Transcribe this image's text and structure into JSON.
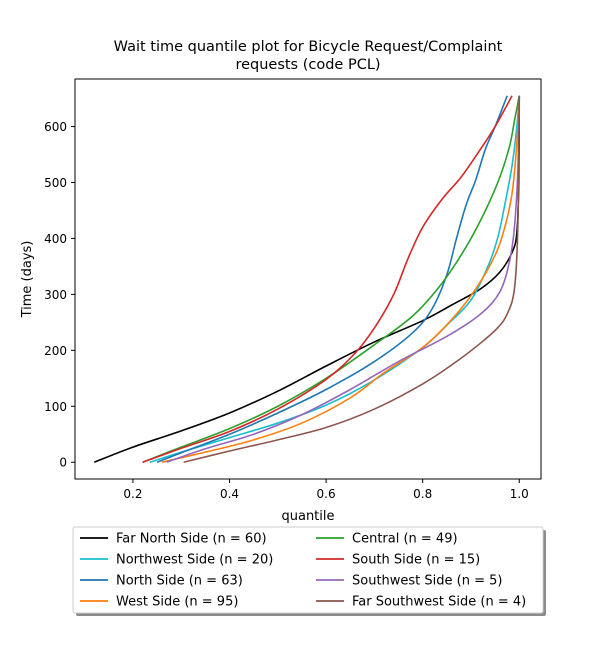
{
  "chart_data": {
    "type": "line",
    "title": "Wait time quantile plot for Bicycle Request/Complaint requests (code PCL)",
    "title_lines": [
      "Wait time quantile plot for Bicycle Request/Complaint",
      "requests (code PCL)"
    ],
    "xlabel": "quantile",
    "ylabel": "Time (days)",
    "xlim": [
      0.08,
      1.045
    ],
    "ylim": [
      -30,
      685
    ],
    "xticks": [
      0.2,
      0.4,
      0.6,
      0.8,
      1.0
    ],
    "xtick_labels": [
      "0.2",
      "0.4",
      "0.6",
      "0.8",
      "1.0"
    ],
    "yticks": [
      0,
      100,
      200,
      300,
      400,
      500,
      600
    ],
    "ytick_labels": [
      "0",
      "100",
      "200",
      "300",
      "400",
      "500",
      "600"
    ],
    "grid": false,
    "legend_position": "below",
    "series": [
      {
        "name": "Far North Side (n = 60)",
        "color": "#000000",
        "x": [
          0.12,
          0.2,
          0.3,
          0.4,
          0.5,
          0.6,
          0.7,
          0.8,
          0.86,
          0.92,
          0.96,
          0.985,
          0.995,
          0.999,
          1.0
        ],
        "y": [
          0,
          27,
          56,
          88,
          127,
          172,
          215,
          253,
          281,
          310,
          340,
          375,
          410,
          500,
          655
        ]
      },
      {
        "name": "Northwest Side (n = 20)",
        "color": "#17becf",
        "x": [
          0.235,
          0.3,
          0.4,
          0.5,
          0.6,
          0.7,
          0.8,
          0.85,
          0.9,
          0.935,
          0.955,
          0.97,
          0.985,
          0.995,
          1.0
        ],
        "y": [
          0,
          18,
          44,
          70,
          102,
          147,
          205,
          245,
          290,
          350,
          400,
          460,
          530,
          600,
          655
        ]
      },
      {
        "name": "North Side (n = 63)",
        "color": "#1f77b4",
        "x": [
          0.25,
          0.3,
          0.4,
          0.5,
          0.6,
          0.7,
          0.78,
          0.82,
          0.85,
          0.87,
          0.89,
          0.91,
          0.93,
          0.95,
          0.975
        ],
        "y": [
          0,
          17,
          50,
          88,
          130,
          180,
          232,
          275,
          335,
          400,
          460,
          505,
          560,
          600,
          655
        ]
      },
      {
        "name": "West Side (n = 95)",
        "color": "#ff7f0e",
        "x": [
          0.26,
          0.35,
          0.45,
          0.55,
          0.65,
          0.72,
          0.8,
          0.86,
          0.91,
          0.95,
          0.97,
          0.985,
          0.995,
          1.0
        ],
        "y": [
          0,
          18,
          40,
          70,
          115,
          160,
          205,
          255,
          310,
          370,
          420,
          480,
          570,
          655
        ]
      },
      {
        "name": "Central (n = 49)",
        "color": "#2ca02c",
        "x": [
          0.22,
          0.3,
          0.4,
          0.5,
          0.6,
          0.7,
          0.78,
          0.84,
          0.89,
          0.93,
          0.96,
          0.98,
          0.99,
          1.0
        ],
        "y": [
          0,
          27,
          60,
          100,
          150,
          210,
          262,
          320,
          385,
          450,
          510,
          565,
          610,
          655
        ]
      },
      {
        "name": "South Side (n = 15)",
        "color": "#d62728",
        "x": [
          0.22,
          0.3,
          0.4,
          0.5,
          0.6,
          0.66,
          0.7,
          0.74,
          0.77,
          0.8,
          0.84,
          0.88,
          0.92,
          0.95,
          0.985
        ],
        "y": [
          0,
          25,
          55,
          95,
          148,
          195,
          240,
          300,
          365,
          420,
          470,
          510,
          560,
          600,
          655
        ]
      },
      {
        "name": "Southwest Side (n = 5)",
        "color": "#9467bd",
        "x": [
          0.27,
          0.35,
          0.45,
          0.55,
          0.65,
          0.75,
          0.85,
          0.92,
          0.96,
          0.98,
          0.99,
          0.997,
          1.0
        ],
        "y": [
          0,
          24,
          50,
          85,
          130,
          180,
          225,
          265,
          305,
          360,
          420,
          520,
          655
        ]
      },
      {
        "name": "Far Southwest Side (n = 4)",
        "color": "#8c564b",
        "x": [
          0.305,
          0.4,
          0.5,
          0.6,
          0.7,
          0.8,
          0.87,
          0.92,
          0.955,
          0.975,
          0.99,
          0.997,
          1.0
        ],
        "y": [
          0,
          20,
          40,
          62,
          95,
          140,
          180,
          213,
          240,
          265,
          310,
          420,
          655
        ]
      }
    ]
  }
}
